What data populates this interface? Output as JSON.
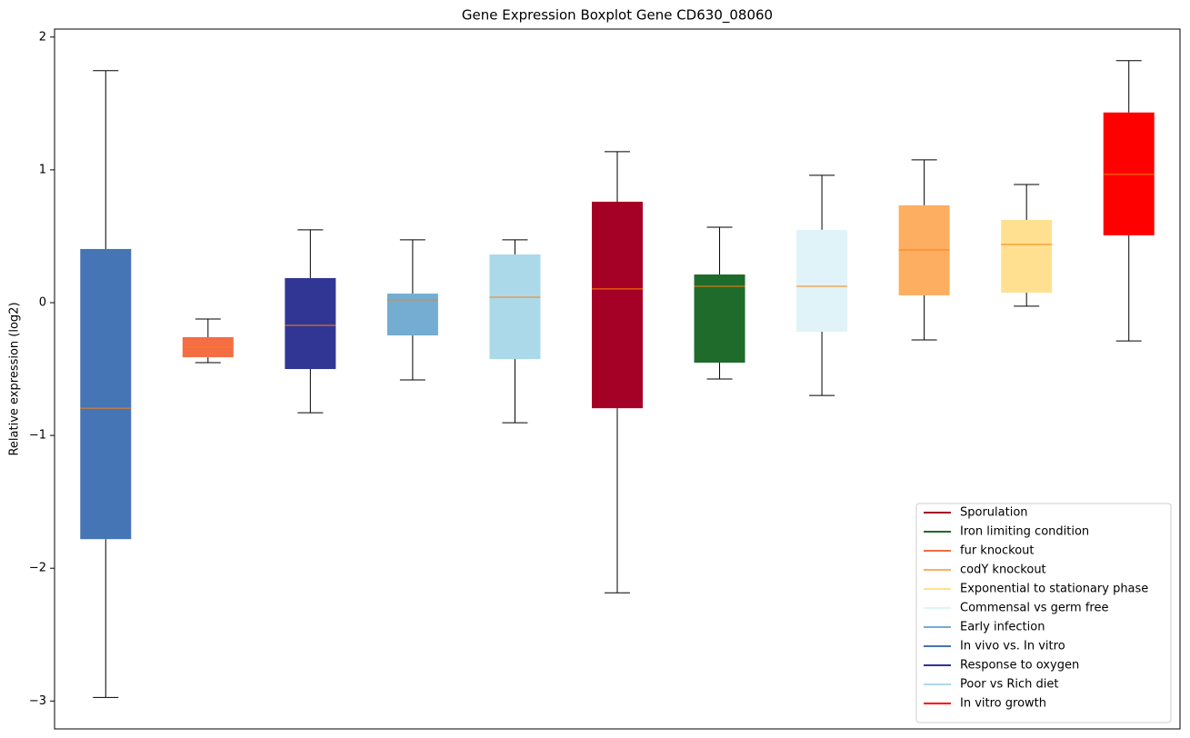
{
  "chart_data": {
    "type": "boxplot",
    "title": "Gene Expression Boxplot Gene CD630_08060",
    "y_label": "Relative expression (log2)",
    "ylim": [
      -3.21,
      2.06
    ],
    "yticks": [
      {
        "value": -3,
        "label": "−3"
      },
      {
        "value": -2,
        "label": "−2"
      },
      {
        "value": -1,
        "label": "−1"
      },
      0,
      1,
      2
    ],
    "median_color": "#ff7f0e",
    "boxes": [
      {
        "color": "#4575b4",
        "whislo": -2.973,
        "q1": -1.781,
        "med": -0.795,
        "q3": 0.404,
        "whishi": 1.747
      },
      {
        "color": "#f46d43",
        "whislo": -0.452,
        "q1": -0.411,
        "med": -0.336,
        "q3": -0.26,
        "whishi": -0.123
      },
      {
        "color": "#313695",
        "whislo": -0.829,
        "q1": -0.5,
        "med": -0.171,
        "q3": 0.185,
        "whishi": 0.548
      },
      {
        "color": "#74add1",
        "whislo": -0.582,
        "q1": -0.247,
        "med": 0.021,
        "q3": 0.068,
        "whishi": 0.473
      },
      {
        "color": "#abd9e9",
        "whislo": -0.904,
        "q1": -0.425,
        "med": 0.041,
        "q3": 0.363,
        "whishi": 0.473
      },
      {
        "color": "#a50026",
        "whislo": -2.185,
        "q1": -0.795,
        "med": 0.103,
        "q3": 0.76,
        "whishi": 1.137
      },
      {
        "color": "#1f6b2b",
        "whislo": -0.575,
        "q1": -0.452,
        "med": 0.123,
        "q3": 0.212,
        "whishi": 0.568
      },
      {
        "color": "#e0f3f8",
        "whislo": -0.699,
        "q1": -0.219,
        "med": 0.123,
        "q3": 0.548,
        "whishi": 0.959
      },
      {
        "color": "#fdae61",
        "whislo": -0.281,
        "q1": 0.055,
        "med": 0.397,
        "q3": 0.733,
        "whishi": 1.075
      },
      {
        "color": "#fee090",
        "whislo": -0.027,
        "q1": 0.075,
        "med": 0.438,
        "q3": 0.623,
        "whishi": 0.89
      },
      {
        "color": "#ff0000",
        "whislo": -0.288,
        "q1": 0.507,
        "med": 0.966,
        "q3": 1.432,
        "whishi": 1.822
      }
    ],
    "legend": {
      "loc": "lower right",
      "entries": [
        {
          "name": "Sporulation",
          "color": "#a50026"
        },
        {
          "name": "Iron limiting condition",
          "color": "#1f6b2b"
        },
        {
          "name": "fur knockout",
          "color": "#f46d43"
        },
        {
          "name": "codY knockout",
          "color": "#fdae61"
        },
        {
          "name": "Exponential to stationary phase",
          "color": "#fee090"
        },
        {
          "name": "Commensal vs germ free",
          "color": "#e0f3f8"
        },
        {
          "name": "Early infection",
          "color": "#74add1"
        },
        {
          "name": "In vivo vs. In vitro",
          "color": "#4575b4"
        },
        {
          "name": "Response to oxygen",
          "color": "#313695"
        },
        {
          "name": "Poor vs Rich diet",
          "color": "#abd9e9"
        },
        {
          "name": "In vitro growth",
          "color": "#ff0000"
        }
      ]
    }
  }
}
